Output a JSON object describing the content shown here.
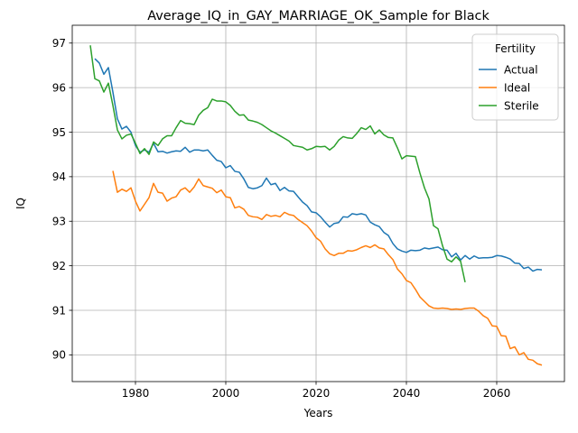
{
  "chart_data": {
    "type": "line",
    "title": "Average_IQ_in_GAY_MARRIAGE_OK_Sample for Black",
    "xlabel": "Years",
    "ylabel": "IQ",
    "xlim": [
      1966,
      2075
    ],
    "ylim": [
      89.4,
      97.4
    ],
    "xticks": [
      1980,
      2000,
      2020,
      2040,
      2060
    ],
    "yticks": [
      90,
      91,
      92,
      93,
      94,
      95,
      96,
      97
    ],
    "grid": true,
    "legend": {
      "title": "Fertility",
      "position": "top-right"
    },
    "series": [
      {
        "name": "Actual",
        "color": "#1f77b4",
        "x": [
          1971,
          1972,
          1973,
          1974,
          1975,
          1976,
          1977,
          1978,
          1979,
          1980,
          1981,
          1982,
          1983,
          1984,
          1985,
          1986,
          1987,
          1988,
          1989,
          1990,
          1991,
          1992,
          1993,
          1994,
          1995,
          1996,
          1997,
          1998,
          1999,
          2000,
          2001,
          2002,
          2003,
          2004,
          2005,
          2006,
          2007,
          2008,
          2009,
          2010,
          2011,
          2012,
          2013,
          2014,
          2015,
          2016,
          2017,
          2018,
          2019,
          2020,
          2021,
          2022,
          2023,
          2024,
          2025,
          2026,
          2027,
          2028,
          2029,
          2030,
          2031,
          2032,
          2033,
          2034,
          2035,
          2036,
          2037,
          2038,
          2039,
          2040,
          2041,
          2042,
          2043,
          2044,
          2045,
          2046,
          2047,
          2048,
          2049,
          2050,
          2051,
          2052,
          2053,
          2054,
          2055,
          2056,
          2057,
          2058,
          2059,
          2060,
          2061,
          2062,
          2063,
          2064,
          2065,
          2066,
          2067,
          2068,
          2069,
          2070
        ],
        "y": [
          96.65,
          96.55,
          96.3,
          96.45,
          95.9,
          95.3,
          95.07,
          95.13,
          95.0,
          94.7,
          94.55,
          94.6,
          94.55,
          94.75,
          94.56,
          94.57,
          94.53,
          94.56,
          94.58,
          94.57,
          94.66,
          94.55,
          94.6,
          94.6,
          94.58,
          94.6,
          94.48,
          94.37,
          94.34,
          94.2,
          94.25,
          94.12,
          94.1,
          93.95,
          93.76,
          93.73,
          93.75,
          93.8,
          93.97,
          93.82,
          93.85,
          93.69,
          93.76,
          93.68,
          93.67,
          93.55,
          93.43,
          93.35,
          93.21,
          93.19,
          93.1,
          92.98,
          92.87,
          92.95,
          92.97,
          93.1,
          93.09,
          93.17,
          93.15,
          93.17,
          93.14,
          92.98,
          92.92,
          92.88,
          92.75,
          92.68,
          92.5,
          92.38,
          92.33,
          92.3,
          92.35,
          92.34,
          92.35,
          92.4,
          92.38,
          92.4,
          92.42,
          92.36,
          92.35,
          92.2,
          92.28,
          92.13,
          92.23,
          92.15,
          92.22,
          92.17,
          92.18,
          92.18,
          92.19,
          92.23,
          92.22,
          92.19,
          92.15,
          92.06,
          92.05,
          91.94,
          91.97,
          91.88,
          91.92,
          91.91
        ]
      },
      {
        "name": "Ideal",
        "color": "#ff7f0e",
        "x": [
          1975,
          1976,
          1977,
          1978,
          1979,
          1980,
          1981,
          1982,
          1983,
          1984,
          1985,
          1986,
          1987,
          1988,
          1989,
          1990,
          1991,
          1992,
          1993,
          1994,
          1995,
          1996,
          1997,
          1998,
          1999,
          2000,
          2001,
          2002,
          2003,
          2004,
          2005,
          2006,
          2007,
          2008,
          2009,
          2010,
          2011,
          2012,
          2013,
          2014,
          2015,
          2016,
          2017,
          2018,
          2019,
          2020,
          2021,
          2022,
          2023,
          2024,
          2025,
          2026,
          2027,
          2028,
          2029,
          2030,
          2031,
          2032,
          2033,
          2034,
          2035,
          2036,
          2037,
          2038,
          2039,
          2040,
          2041,
          2042,
          2043,
          2044,
          2045,
          2046,
          2047,
          2048,
          2049,
          2050,
          2051,
          2052,
          2053,
          2054,
          2055,
          2056,
          2057,
          2058,
          2059,
          2060,
          2061,
          2062,
          2063,
          2064,
          2065,
          2066,
          2067,
          2068,
          2069,
          2070
        ],
        "y": [
          94.13,
          93.65,
          93.72,
          93.67,
          93.75,
          93.45,
          93.23,
          93.38,
          93.53,
          93.85,
          93.65,
          93.63,
          93.45,
          93.52,
          93.55,
          93.7,
          93.75,
          93.65,
          93.77,
          93.95,
          93.8,
          93.77,
          93.74,
          93.64,
          93.7,
          93.55,
          93.53,
          93.3,
          93.33,
          93.27,
          93.13,
          93.1,
          93.09,
          93.04,
          93.15,
          93.11,
          93.13,
          93.1,
          93.2,
          93.15,
          93.13,
          93.04,
          92.97,
          92.9,
          92.78,
          92.63,
          92.55,
          92.38,
          92.27,
          92.23,
          92.28,
          92.28,
          92.34,
          92.33,
          92.36,
          92.41,
          92.45,
          92.41,
          92.47,
          92.4,
          92.38,
          92.25,
          92.14,
          91.93,
          91.82,
          91.67,
          91.62,
          91.47,
          91.3,
          91.2,
          91.1,
          91.05,
          91.04,
          91.05,
          91.04,
          91.02,
          91.03,
          91.02,
          91.04,
          91.05,
          91.05,
          90.98,
          90.88,
          90.82,
          90.65,
          90.64,
          90.43,
          90.42,
          90.14,
          90.18,
          90.0,
          90.05,
          89.9,
          89.88,
          89.8,
          89.77
        ],
        "last_x_note": ""
      },
      {
        "name": "Sterile",
        "color": "#2ca02c",
        "x": [
          1970,
          1971,
          1972,
          1973,
          1974,
          1975,
          1976,
          1977,
          1978,
          1979,
          1980,
          1981,
          1982,
          1983,
          1984,
          1985,
          1986,
          1987,
          1988,
          1989,
          1990,
          1991,
          1992,
          1993,
          1994,
          1995,
          1996,
          1997,
          1998,
          1999,
          2000,
          2001,
          2002,
          2003,
          2004,
          2005,
          2006,
          2007,
          2008,
          2009,
          2010,
          2011,
          2012,
          2013,
          2014,
          2015,
          2016,
          2017,
          2018,
          2019,
          2020,
          2021,
          2022,
          2023,
          2024,
          2025,
          2026,
          2027,
          2028,
          2029,
          2030,
          2031,
          2032,
          2033,
          2034,
          2035,
          2036,
          2037,
          2038,
          2039,
          2040,
          2041,
          2042,
          2043,
          2044,
          2045,
          2046,
          2047,
          2048,
          2049,
          2050,
          2051,
          2052,
          2053
        ],
        "y": [
          96.95,
          96.2,
          96.15,
          95.9,
          96.1,
          95.6,
          95.05,
          94.85,
          94.93,
          94.96,
          94.75,
          94.52,
          94.63,
          94.5,
          94.78,
          94.7,
          94.85,
          94.92,
          94.92,
          95.1,
          95.26,
          95.2,
          95.19,
          95.17,
          95.38,
          95.49,
          95.55,
          95.74,
          95.7,
          95.7,
          95.68,
          95.6,
          95.47,
          95.38,
          95.39,
          95.27,
          95.25,
          95.22,
          95.17,
          95.1,
          95.03,
          94.98,
          94.92,
          94.86,
          94.8,
          94.7,
          94.68,
          94.66,
          94.6,
          94.63,
          94.68,
          94.67,
          94.68,
          94.6,
          94.68,
          94.82,
          94.9,
          94.87,
          94.86,
          94.97,
          95.1,
          95.06,
          95.14,
          94.96,
          95.05,
          94.94,
          94.88,
          94.87,
          94.65,
          94.4,
          94.47,
          94.46,
          94.45,
          94.08,
          93.75,
          93.5,
          92.9,
          92.83,
          92.45,
          92.15,
          92.09,
          92.2,
          92.1,
          91.63
        ]
      }
    ]
  }
}
